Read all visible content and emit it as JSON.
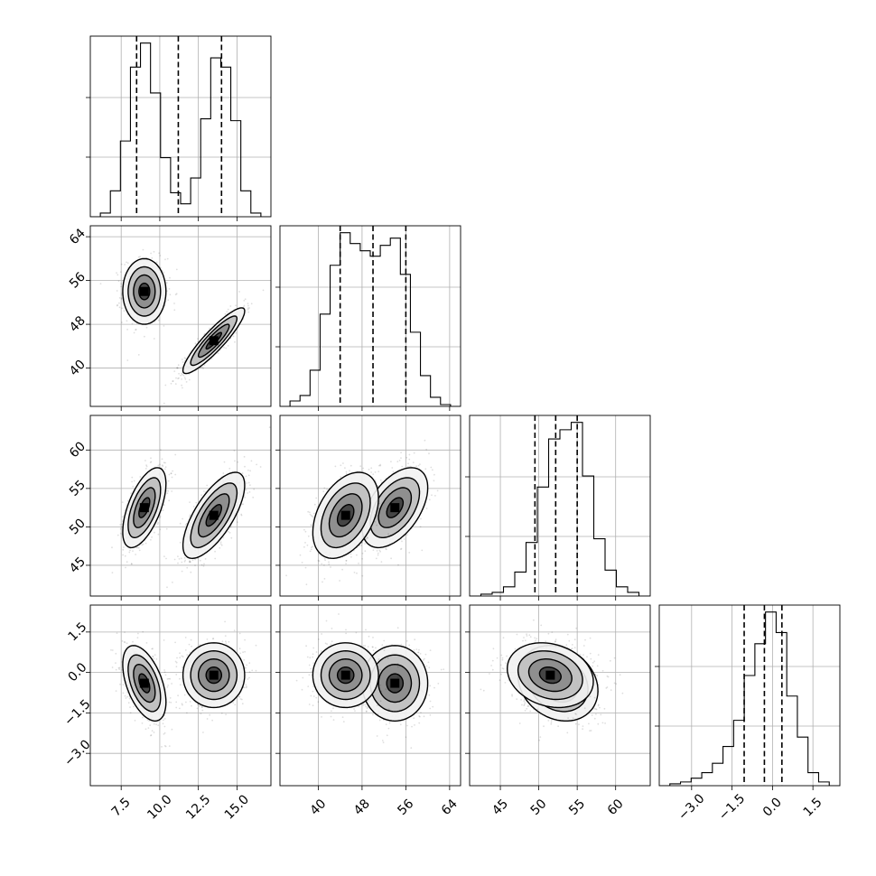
{
  "chart_data": {
    "type": "corner",
    "parameters": [
      {
        "range": [
          5.5,
          17.2
        ],
        "ticks": [
          7.5,
          10.0,
          12.5,
          15.0
        ],
        "tick_labels": [
          "7.5",
          "10.0",
          "12.5",
          "15.0"
        ],
        "quantiles": [
          8.5,
          11.2,
          14.0
        ],
        "hist_bins": [
          0.0,
          0.02,
          0.14,
          0.41,
          0.81,
          0.94,
          0.67,
          0.32,
          0.13,
          0.07,
          0.21,
          0.53,
          0.86,
          0.81,
          0.52,
          0.14,
          0.02,
          0.0
        ]
      },
      {
        "range": [
          33.0,
          66.0
        ],
        "ticks": [
          40,
          48,
          56,
          64
        ],
        "tick_labels": [
          "40",
          "48",
          "56",
          "64"
        ],
        "quantiles": [
          44.0,
          50.0,
          56.0
        ],
        "hist_bins": [
          0.0,
          0.03,
          0.06,
          0.2,
          0.51,
          0.78,
          0.96,
          0.9,
          0.86,
          0.83,
          0.89,
          0.93,
          0.73,
          0.41,
          0.17,
          0.05,
          0.01,
          0.0
        ]
      },
      {
        "range": [
          41.0,
          64.5
        ],
        "ticks": [
          45,
          50,
          55,
          60
        ],
        "tick_labels": [
          "45",
          "50",
          "55",
          "60"
        ],
        "quantiles": [
          49.5,
          52.2,
          55.0
        ],
        "hist_bins": [
          0.0,
          0.01,
          0.02,
          0.05,
          0.13,
          0.29,
          0.59,
          0.85,
          0.9,
          0.94,
          0.65,
          0.31,
          0.14,
          0.05,
          0.02,
          0.0
        ]
      },
      {
        "range": [
          -4.2,
          2.5
        ],
        "ticks": [
          -3.0,
          -1.5,
          0.0,
          1.5
        ],
        "tick_labels": [
          "−3.0",
          "−1.5",
          "0.0",
          "1.5"
        ],
        "quantiles": [
          -1.05,
          -0.3,
          0.35
        ],
        "hist_bins": [
          0.0,
          0.01,
          0.02,
          0.04,
          0.07,
          0.12,
          0.21,
          0.35,
          0.59,
          0.76,
          0.93,
          0.82,
          0.48,
          0.26,
          0.07,
          0.02,
          0.0
        ]
      }
    ],
    "modes": [
      {
        "mean": [
          9.0,
          54.0,
          52.5,
          -0.4
        ],
        "sd": [
          0.7,
          3.0,
          2.6,
          0.7
        ]
      },
      {
        "mean": [
          13.5,
          45.0,
          51.5,
          -0.1
        ],
        "sd": [
          1.0,
          3.0,
          2.8,
          0.6
        ]
      }
    ],
    "correlations": [
      {
        "pair": [
          0,
          1
        ],
        "rho": [
          0.0,
          0.9
        ]
      },
      {
        "pair": [
          0,
          2
        ],
        "rho": [
          0.6,
          0.7
        ]
      },
      {
        "pair": [
          0,
          3
        ],
        "rho": [
          -0.5,
          0.0
        ]
      },
      {
        "pair": [
          1,
          2
        ],
        "rho": [
          0.5,
          0.4
        ]
      },
      {
        "pair": [
          1,
          3
        ],
        "rho": [
          0.0,
          0.0
        ]
      },
      {
        "pair": [
          2,
          3
        ],
        "rho": [
          -0.2,
          -0.2
        ]
      }
    ],
    "contour_levels_sigma": [
      0.5,
      1.0,
      1.5,
      2.0
    ],
    "grid": true
  }
}
